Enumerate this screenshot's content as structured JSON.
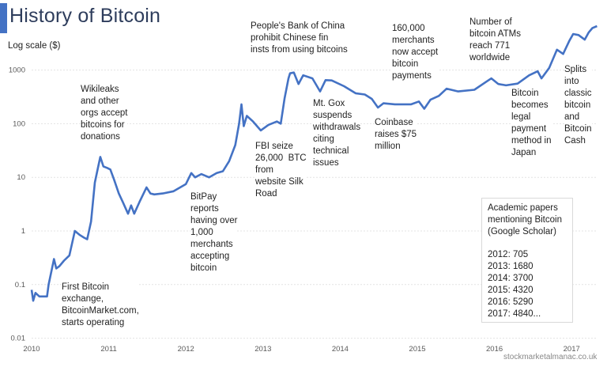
{
  "chart_data": {
    "type": "line",
    "title": "History of Bitcoin",
    "ylabel": "Log scale ($)",
    "y_scale": "log",
    "ylim": [
      0.01,
      10000
    ],
    "xlim": [
      2010,
      2017.33
    ],
    "grid": true,
    "y_ticks": [
      "0.01",
      "0.1",
      "1",
      "10",
      "100",
      "1000"
    ],
    "x_ticks": [
      "2010",
      "2011",
      "2012",
      "2013",
      "2014",
      "2015",
      "2016",
      "2017"
    ],
    "line_color": "#4472c4",
    "points": [
      [
        2010.0,
        0.08
      ],
      [
        2010.02,
        0.05
      ],
      [
        2010.05,
        0.07
      ],
      [
        2010.1,
        0.06
      ],
      [
        2010.2,
        0.06
      ],
      [
        2010.22,
        0.1
      ],
      [
        2010.29,
        0.3
      ],
      [
        2010.32,
        0.2
      ],
      [
        2010.36,
        0.22
      ],
      [
        2010.42,
        0.28
      ],
      [
        2010.49,
        0.35
      ],
      [
        2010.56,
        1.0
      ],
      [
        2010.62,
        0.85
      ],
      [
        2010.68,
        0.75
      ],
      [
        2010.72,
        0.7
      ],
      [
        2010.77,
        1.5
      ],
      [
        2010.82,
        8
      ],
      [
        2010.86,
        15
      ],
      [
        2010.89,
        24
      ],
      [
        2010.93,
        16
      ],
      [
        2010.98,
        15
      ],
      [
        2011.02,
        14
      ],
      [
        2011.07,
        9
      ],
      [
        2011.13,
        5
      ],
      [
        2011.18,
        3.5
      ],
      [
        2011.25,
        2.1
      ],
      [
        2011.29,
        3
      ],
      [
        2011.33,
        2.1
      ],
      [
        2011.4,
        3.5
      ],
      [
        2011.49,
        6.5
      ],
      [
        2011.54,
        5
      ],
      [
        2011.59,
        4.8
      ],
      [
        2011.7,
        5
      ],
      [
        2011.84,
        5.5
      ],
      [
        2012.0,
        7.5
      ],
      [
        2012.07,
        12
      ],
      [
        2012.12,
        10
      ],
      [
        2012.2,
        11.5
      ],
      [
        2012.3,
        10
      ],
      [
        2012.4,
        12
      ],
      [
        2012.48,
        13
      ],
      [
        2012.56,
        20
      ],
      [
        2012.64,
        40
      ],
      [
        2012.69,
        100
      ],
      [
        2012.72,
        230
      ],
      [
        2012.75,
        90
      ],
      [
        2012.79,
        140
      ],
      [
        2012.87,
        110
      ],
      [
        2012.97,
        75
      ],
      [
        2013.07,
        95
      ],
      [
        2013.18,
        110
      ],
      [
        2013.23,
        100
      ],
      [
        2013.28,
        300
      ],
      [
        2013.33,
        700
      ],
      [
        2013.35,
        870
      ],
      [
        2013.4,
        900
      ],
      [
        2013.46,
        550
      ],
      [
        2013.52,
        800
      ],
      [
        2013.64,
        700
      ],
      [
        2013.74,
        400
      ],
      [
        2013.81,
        650
      ],
      [
        2013.89,
        640
      ],
      [
        2014.05,
        500
      ],
      [
        2014.2,
        370
      ],
      [
        2014.32,
        350
      ],
      [
        2014.41,
        290
      ],
      [
        2014.49,
        200
      ],
      [
        2014.56,
        240
      ],
      [
        2014.71,
        230
      ],
      [
        2014.92,
        230
      ],
      [
        2015.02,
        260
      ],
      [
        2015.09,
        190
      ],
      [
        2015.17,
        280
      ],
      [
        2015.28,
        330
      ],
      [
        2015.38,
        450
      ],
      [
        2015.53,
        400
      ],
      [
        2015.74,
        430
      ],
      [
        2015.89,
        600
      ],
      [
        2015.96,
        700
      ],
      [
        2016.05,
        550
      ],
      [
        2016.15,
        520
      ],
      [
        2016.3,
        560
      ],
      [
        2016.45,
        800
      ],
      [
        2016.56,
        950
      ],
      [
        2016.61,
        700
      ],
      [
        2016.71,
        1100
      ],
      [
        2016.81,
        2400
      ],
      [
        2016.89,
        2000
      ],
      [
        2016.97,
        3500
      ],
      [
        2017.02,
        4700
      ],
      [
        2017.09,
        4500
      ],
      [
        2017.17,
        3700
      ],
      [
        2017.22,
        5000
      ],
      [
        2017.27,
        6100
      ],
      [
        2017.33,
        6600
      ]
    ],
    "annotations": [
      "First Bitcoin\nexchange,\nBitcoinMarket.com,\nstarts operating",
      "Wikileaks\nand other\norgs accept\nbitcoins for\ndonations",
      "BitPay\nreports\nhaving over\n1,000\nmerchants\naccepting\nbitcoin",
      "FBI seize\n26,000  BTC\nfrom\nwebsite Silk\nRoad",
      "People's Bank of China\nprohibit Chinese fin\ninsts from using bitcoins",
      "Mt. Gox\nsuspends\nwithdrawals\nciting\ntechnical\nissues",
      "Coinbase\nraises $75\nmillion",
      "160,000\nmerchants\nnow accept\nbitcoin\npayments",
      "Number of\nbitcoin ATMs\nreach 771\nworldwide",
      "Bitcoin\nbecomes\nlegal\npayment\nmethod in\nJapan",
      "Splits\ninto\nclassic\nbitcoin\nand\nBitcoin\nCash"
    ],
    "papers_box": {
      "heading": "Academic papers\nmentioning Bitcoin\n(Google Scholar)",
      "rows": [
        "2012:   705",
        "2013:  1680",
        "2014:  3700",
        "2015:  4320",
        "2016:  5290",
        "2017:  4840..."
      ]
    },
    "source": "stockmarketalmanac.co.uk"
  }
}
